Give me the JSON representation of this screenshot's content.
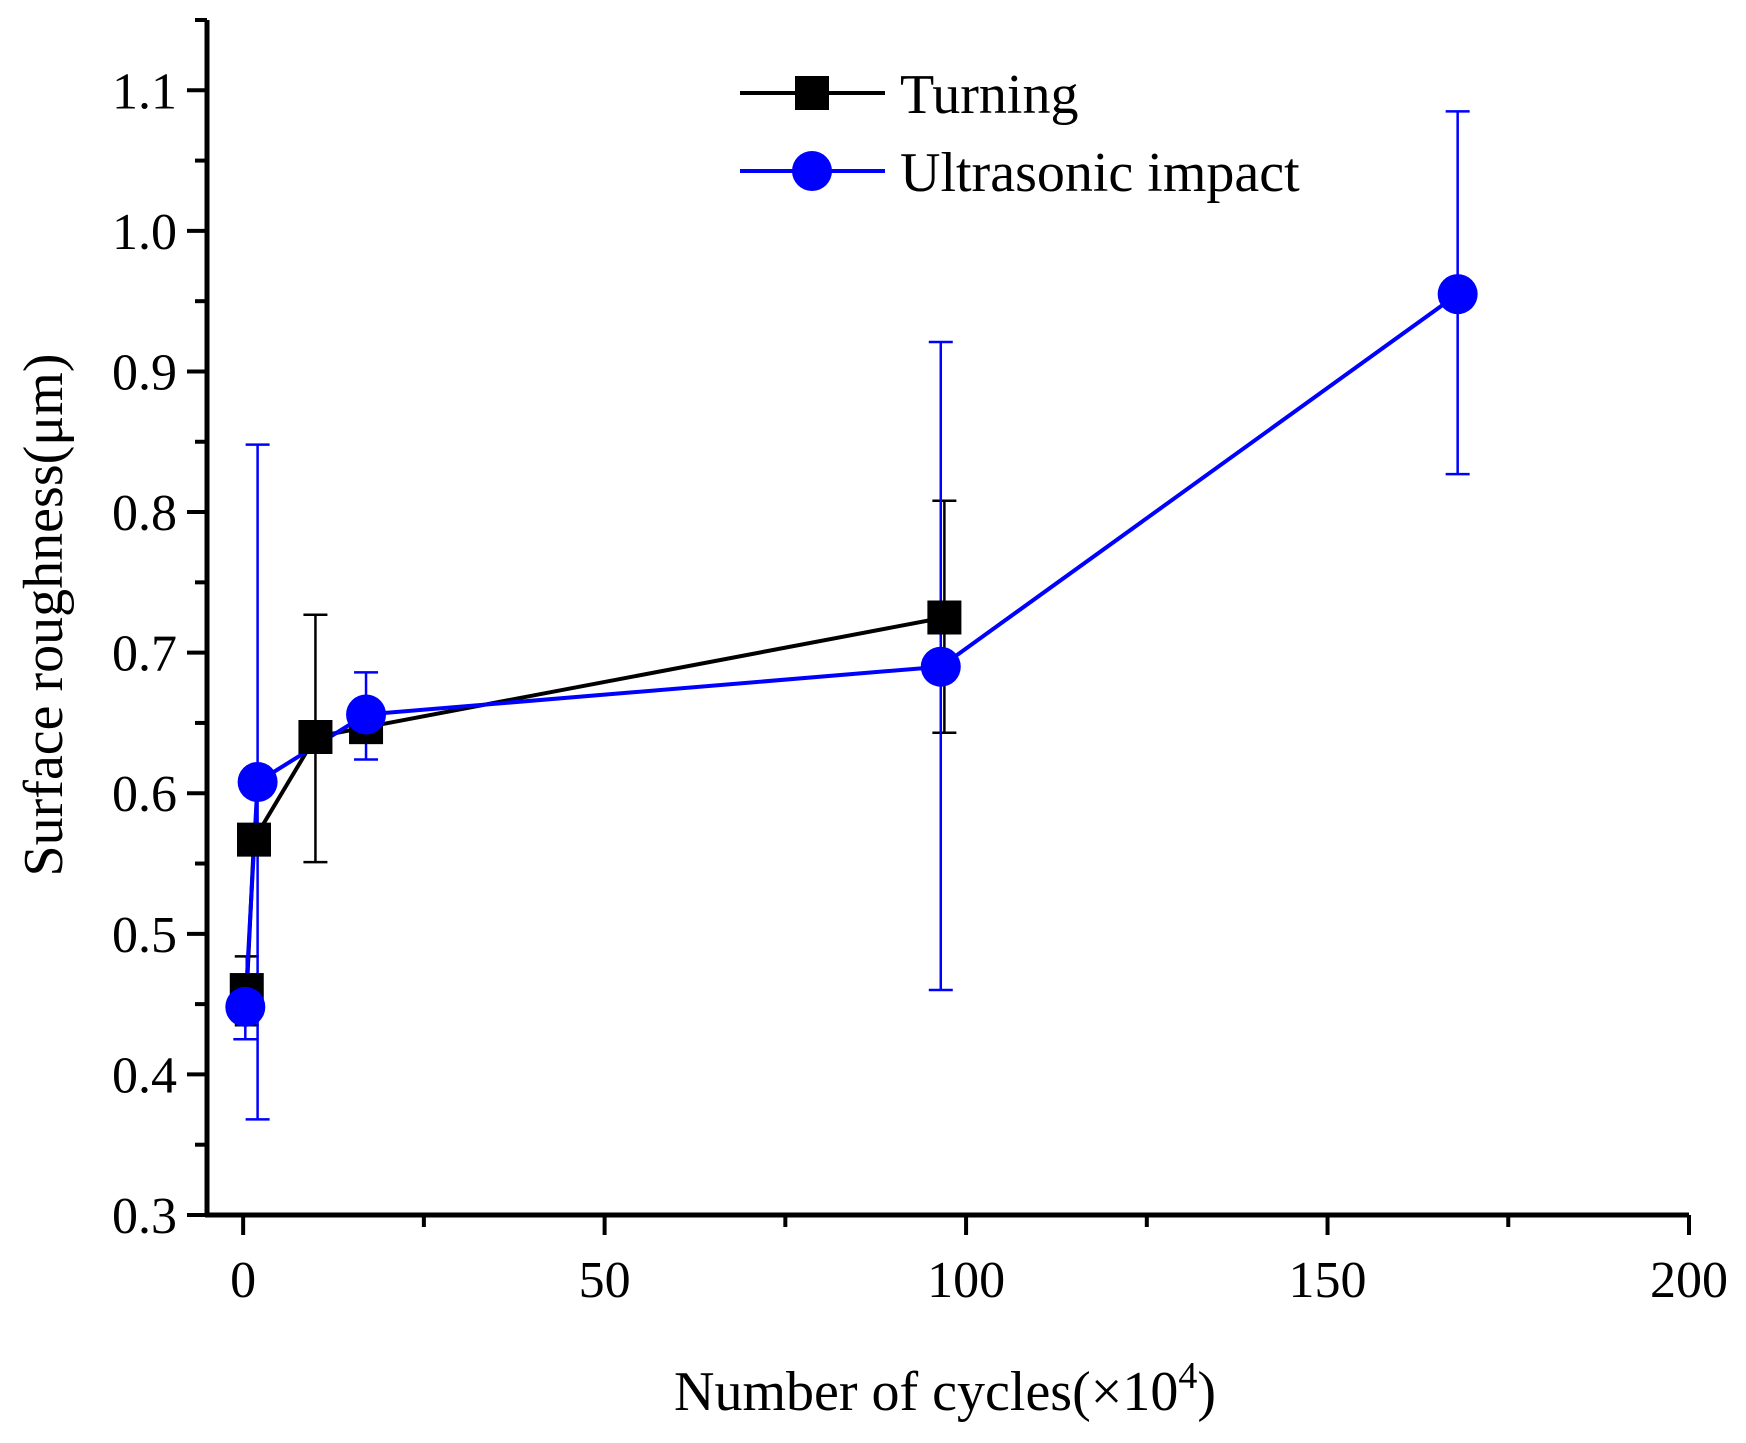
{
  "chart_data": {
    "type": "line",
    "title": "",
    "xlabel": "Number of cycles(×10",
    "xlabel_sup": "4",
    "xlabel_close": ")",
    "ylabel": "Surface roughness(μm)",
    "xlim": [
      -5,
      200
    ],
    "ylim": [
      0.3,
      1.15
    ],
    "x_ticks": [
      0,
      50,
      100,
      150,
      200
    ],
    "x_tick_labels": [
      "0",
      "50",
      "100",
      "150",
      "200"
    ],
    "x_minor_ticks": [
      25,
      75,
      125,
      175
    ],
    "y_ticks": [
      0.3,
      0.4,
      0.5,
      0.6,
      0.7,
      0.8,
      0.9,
      1.0,
      1.1
    ],
    "y_tick_labels": [
      "0.3",
      "0.4",
      "0.5",
      "0.6",
      "0.7",
      "0.8",
      "0.9",
      "1.0",
      "1.1"
    ],
    "y_minor_ticks": [
      0.35,
      0.45,
      0.55,
      0.65,
      0.75,
      0.85,
      0.95,
      1.05,
      1.15
    ],
    "grid": false,
    "legend_position": "top-center",
    "series": [
      {
        "name": "Turning",
        "color": "#000000",
        "marker": "square",
        "x": [
          0.5,
          1.5,
          10,
          17,
          97
        ],
        "y": [
          0.46,
          0.567,
          0.64,
          0.647,
          0.725
        ],
        "err_low": [
          0.435,
          null,
          0.551,
          null,
          0.643
        ],
        "err_high": [
          0.484,
          null,
          0.727,
          null,
          0.808
        ]
      },
      {
        "name": "Ultrasonic impact",
        "color": "#0000ff",
        "marker": "circle",
        "x": [
          0.3,
          2,
          17,
          96.5,
          168
        ],
        "y": [
          0.448,
          0.608,
          0.656,
          0.69,
          0.955
        ],
        "err_low": [
          0.425,
          0.368,
          0.624,
          0.46,
          0.827
        ],
        "err_high": [
          0.47,
          0.848,
          0.686,
          0.921,
          1.085
        ]
      }
    ]
  }
}
